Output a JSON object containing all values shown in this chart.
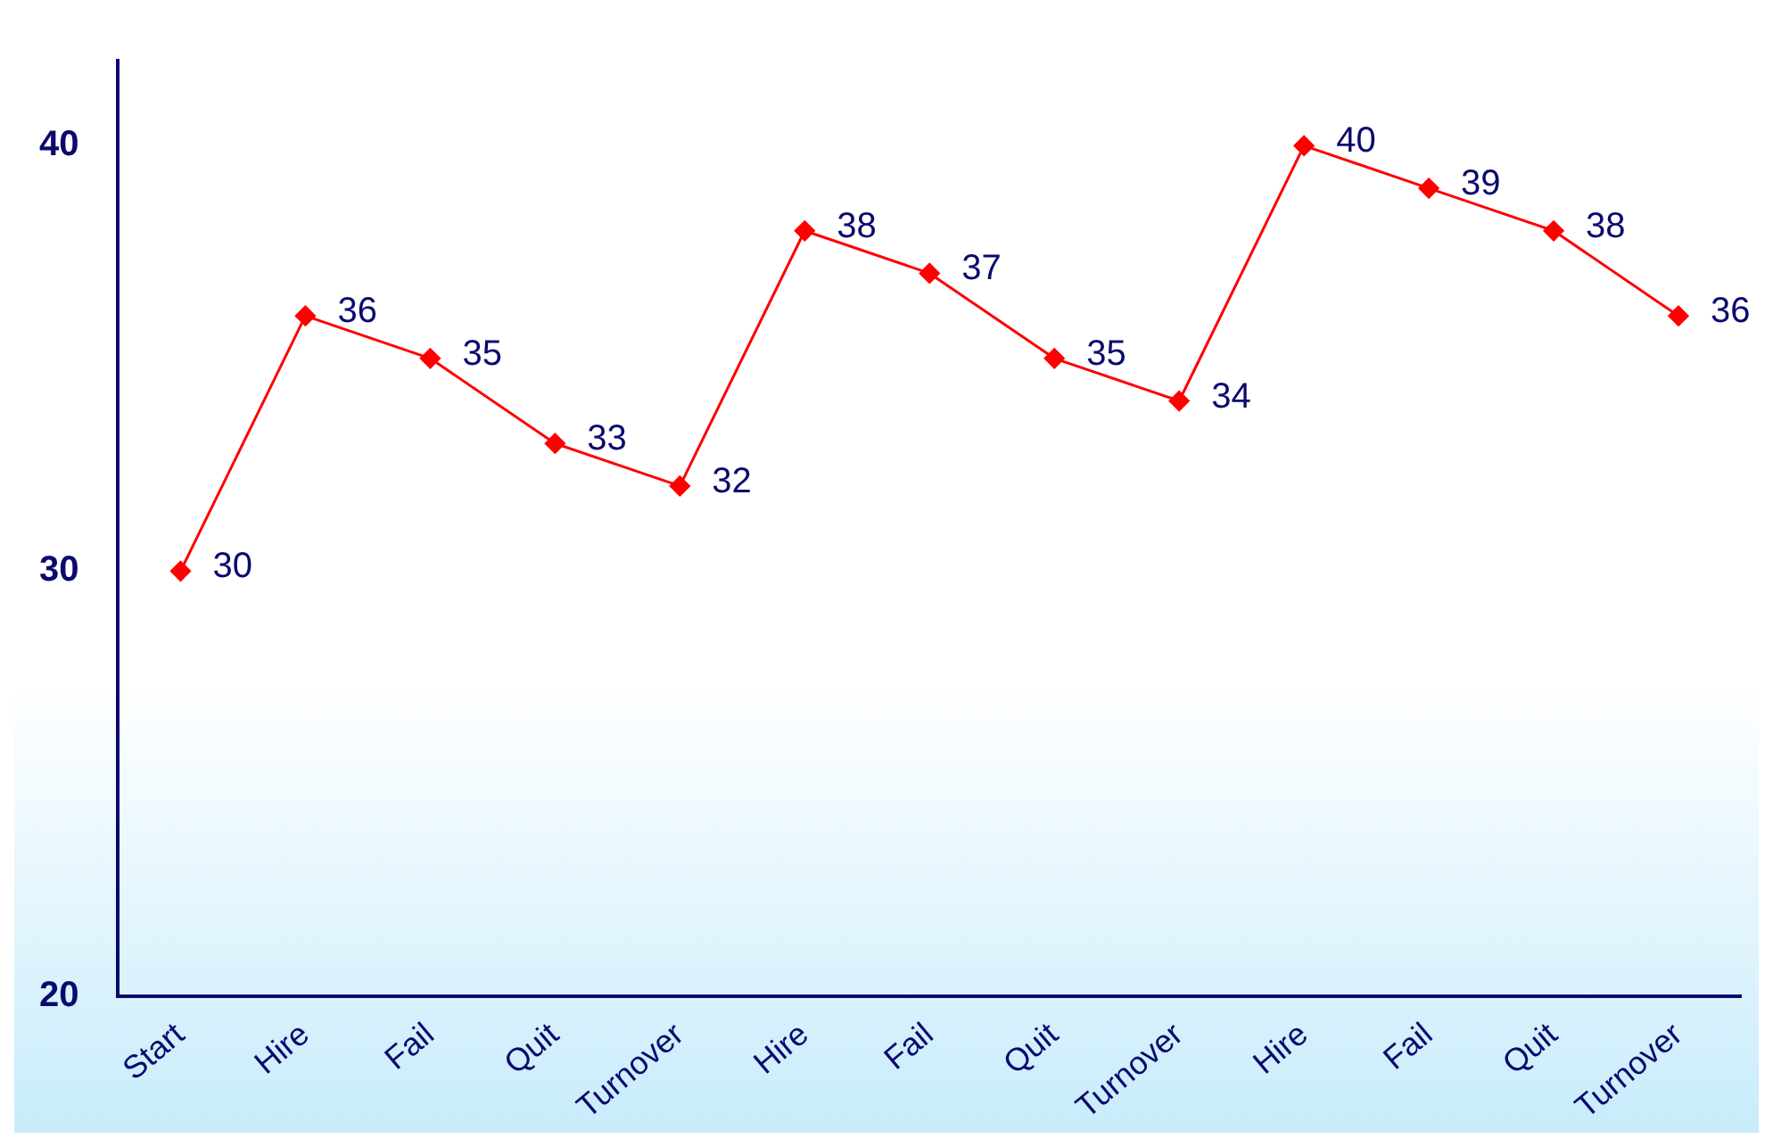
{
  "chart_data": {
    "type": "line",
    "categories": [
      "Start",
      "Hire",
      "Fail",
      "Quit",
      "Turnover",
      "Hire",
      "Fail",
      "Quit",
      "Turnover",
      "Hire",
      "Fail",
      "Quit",
      "Turnover"
    ],
    "series": [
      {
        "color": "#ff0000",
        "values": [
          30,
          36,
          35,
          33,
          32,
          38,
          37,
          35,
          34,
          40,
          39,
          38,
          36
        ]
      }
    ],
    "ylim": [
      20,
      42
    ],
    "yticks": [
      20,
      30,
      40
    ],
    "grid": false,
    "legend": false,
    "marker": "diamond",
    "line_style": "solid",
    "data_labels": true
  }
}
